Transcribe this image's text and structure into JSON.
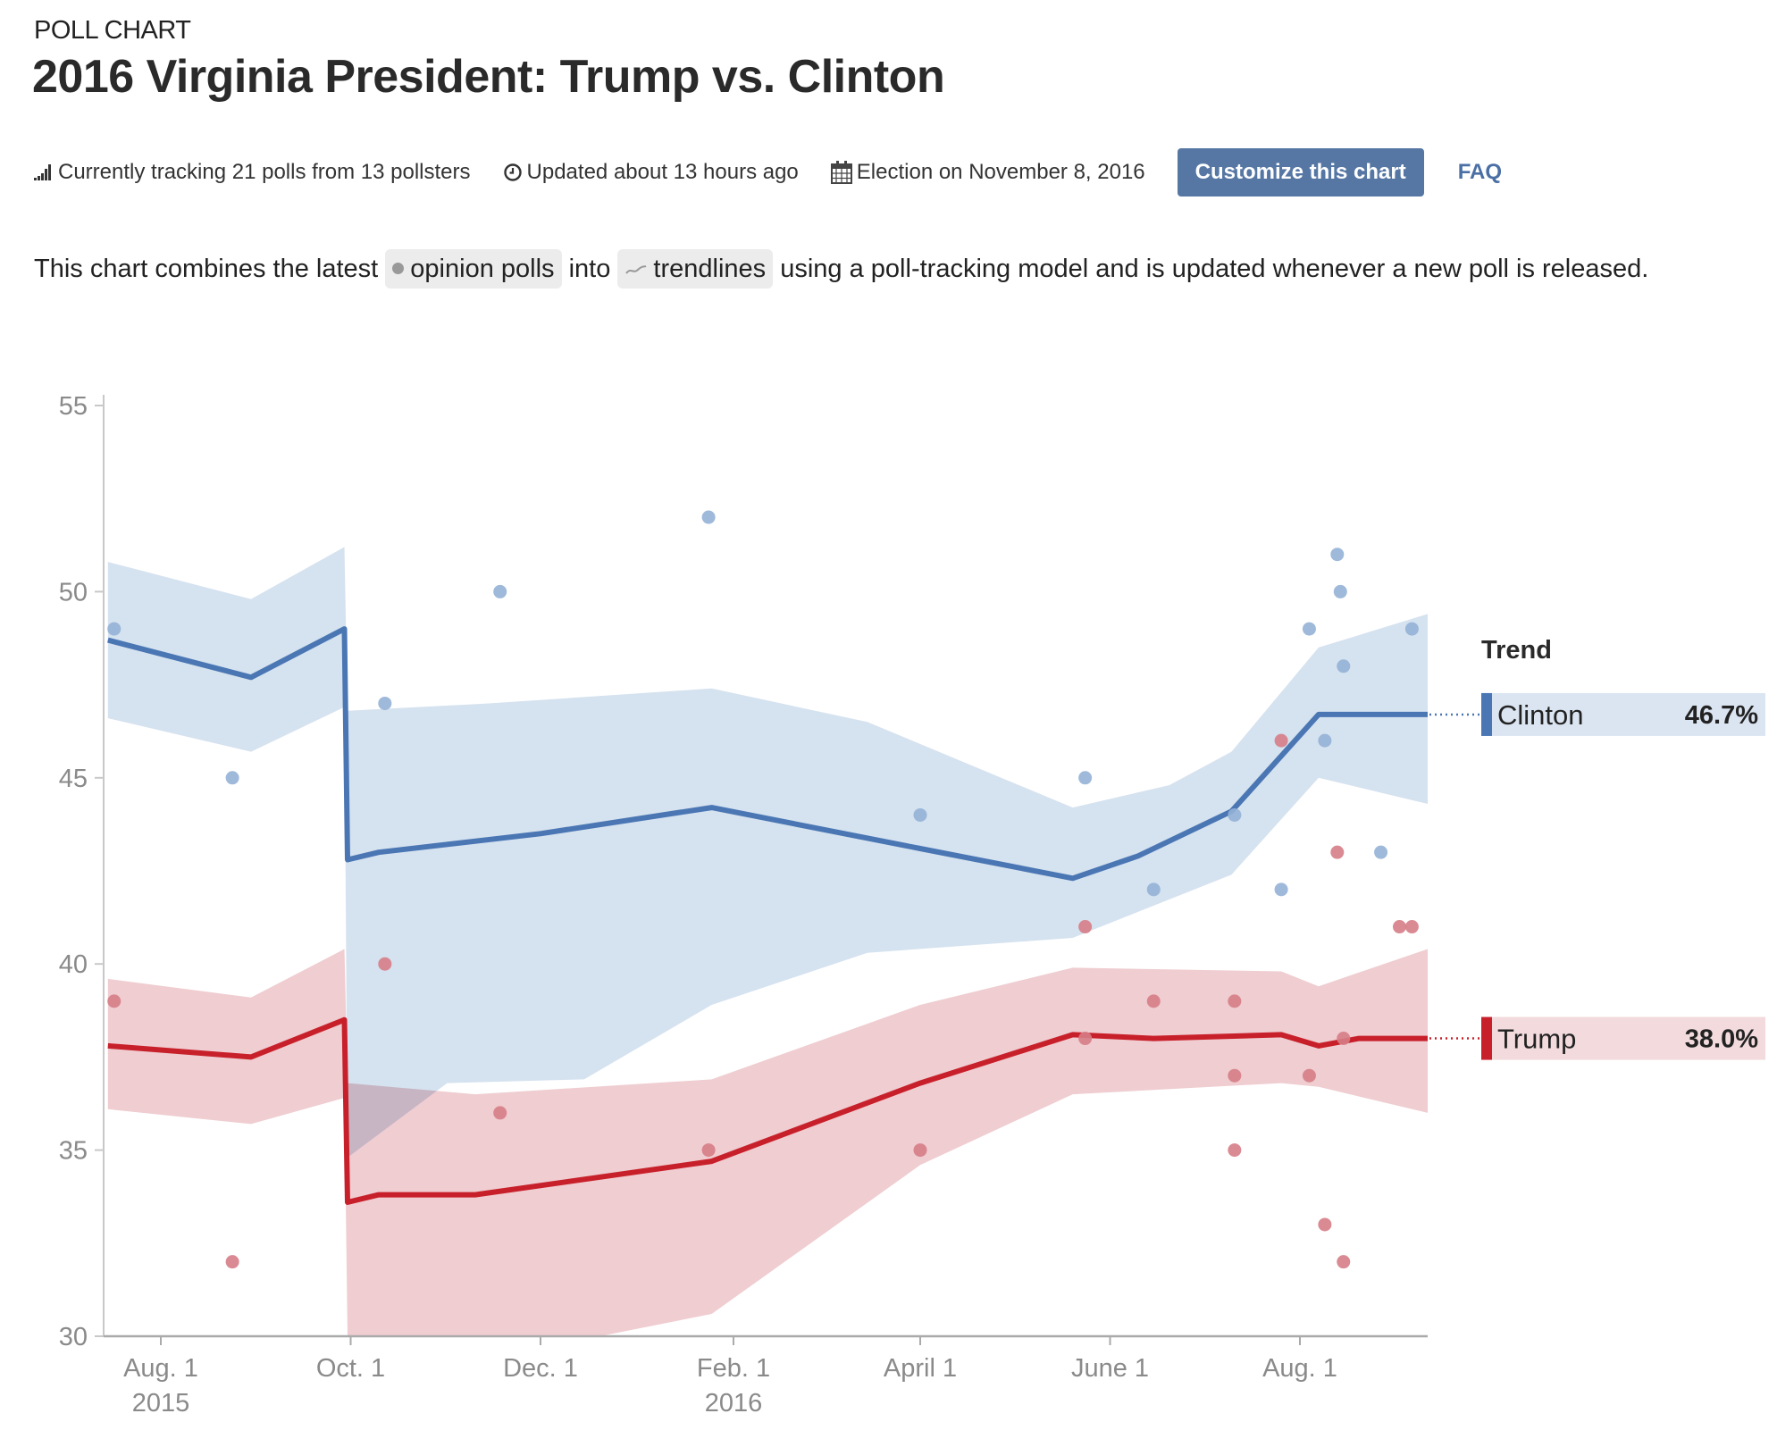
{
  "header": {
    "eyebrow": "POLL CHART",
    "title": "2016 Virginia President: Trump vs. Clinton"
  },
  "meta": {
    "tracking": {
      "icon": "signal-bars-icon",
      "text": "Currently tracking 21 polls from 13 pollsters"
    },
    "updated": {
      "icon": "clock-icon",
      "text": "Updated about 13 hours ago"
    },
    "election": {
      "icon": "calendar-icon",
      "text": "Election on November 8, 2016"
    },
    "customize_label": "Customize this chart",
    "faq_label": "FAQ"
  },
  "description": {
    "before": "This chart combines the latest",
    "pill_polls": "opinion polls",
    "middle": "into",
    "pill_trend": "trendlines",
    "after": "using a poll-tracking model and is updated whenever a new poll is released."
  },
  "colors": {
    "clinton_line": "#4a76b4",
    "clinton_band": "#d3e0ee",
    "clinton_dot": "#93b1d6",
    "trump_line": "#c8202a",
    "trump_band": "#efcdd1",
    "trump_dot": "#d67d86",
    "button": "#5677a4",
    "faq": "#4a6fa5"
  },
  "chart_data": {
    "type": "line",
    "title": "2016 Virginia President: Trump vs. Clinton",
    "xlabel": "",
    "ylabel": "",
    "ylim": [
      30,
      55
    ],
    "yticks": [
      "55",
      "50",
      "45",
      "40",
      "35",
      "30"
    ],
    "xlim": [
      "2015-07-15",
      "2016-09-20"
    ],
    "xticks": [
      {
        "date": "2015-08-01",
        "label": "Aug. 1",
        "sub": "2015"
      },
      {
        "date": "2015-10-01",
        "label": "Oct. 1",
        "sub": ""
      },
      {
        "date": "2015-12-01",
        "label": "Dec. 1",
        "sub": ""
      },
      {
        "date": "2016-02-01",
        "label": "Feb. 1",
        "sub": "2016"
      },
      {
        "date": "2016-04-01",
        "label": "April 1",
        "sub": ""
      },
      {
        "date": "2016-06-01",
        "label": "June 1",
        "sub": ""
      },
      {
        "date": "2016-08-01",
        "label": "Aug. 1",
        "sub": ""
      }
    ],
    "grid": false,
    "legend": {
      "title": "Trend",
      "placement": "right"
    },
    "series": [
      {
        "name": "Clinton",
        "latest": "46.7%",
        "trend": [
          [
            "2015-07-15",
            48.7
          ],
          [
            "2015-08-30",
            47.7
          ],
          [
            "2015-09-29",
            49.0
          ],
          [
            "2015-09-30",
            42.8
          ],
          [
            "2015-10-10",
            43.0
          ],
          [
            "2015-12-01",
            43.5
          ],
          [
            "2016-01-25",
            44.2
          ],
          [
            "2016-04-01",
            43.1
          ],
          [
            "2016-05-20",
            42.3
          ],
          [
            "2016-06-10",
            42.9
          ],
          [
            "2016-07-10",
            44.1
          ],
          [
            "2016-08-07",
            46.7
          ],
          [
            "2016-09-20",
            46.7
          ]
        ],
        "band_upper": [
          [
            "2015-07-15",
            50.8
          ],
          [
            "2015-08-30",
            49.8
          ],
          [
            "2015-09-29",
            51.2
          ],
          [
            "2015-09-30",
            46.8
          ],
          [
            "2015-11-15",
            47.0
          ],
          [
            "2016-01-25",
            47.4
          ],
          [
            "2016-03-15",
            46.5
          ],
          [
            "2016-05-20",
            44.2
          ],
          [
            "2016-06-20",
            44.8
          ],
          [
            "2016-07-10",
            45.7
          ],
          [
            "2016-08-07",
            48.5
          ],
          [
            "2016-09-20",
            49.4
          ]
        ],
        "band_lower": [
          [
            "2015-07-15",
            46.6
          ],
          [
            "2015-08-30",
            45.7
          ],
          [
            "2015-09-29",
            46.9
          ],
          [
            "2015-09-30",
            34.8
          ],
          [
            "2015-11-01",
            36.8
          ],
          [
            "2015-12-15",
            36.9
          ],
          [
            "2016-01-25",
            38.9
          ],
          [
            "2016-03-15",
            40.3
          ],
          [
            "2016-05-20",
            40.7
          ],
          [
            "2016-07-10",
            42.4
          ],
          [
            "2016-08-07",
            45.0
          ],
          [
            "2016-09-20",
            44.3
          ]
        ],
        "polls": [
          [
            "2015-07-17",
            49
          ],
          [
            "2015-08-24",
            45
          ],
          [
            "2015-10-12",
            47
          ],
          [
            "2015-11-18",
            50
          ],
          [
            "2016-01-24",
            52
          ],
          [
            "2016-04-01",
            44
          ],
          [
            "2016-05-24",
            45
          ],
          [
            "2016-06-15",
            42
          ],
          [
            "2016-07-11",
            44
          ],
          [
            "2016-07-26",
            42
          ],
          [
            "2016-08-04",
            49
          ],
          [
            "2016-08-09",
            46
          ],
          [
            "2016-08-13",
            51
          ],
          [
            "2016-08-14",
            50
          ],
          [
            "2016-08-15",
            48
          ],
          [
            "2016-08-27",
            43
          ],
          [
            "2016-09-06",
            49
          ]
        ]
      },
      {
        "name": "Trump",
        "latest": "38.0%",
        "trend": [
          [
            "2015-07-15",
            37.8
          ],
          [
            "2015-08-30",
            37.5
          ],
          [
            "2015-09-29",
            38.5
          ],
          [
            "2015-09-30",
            33.6
          ],
          [
            "2015-10-10",
            33.8
          ],
          [
            "2015-11-10",
            33.8
          ],
          [
            "2016-01-25",
            34.7
          ],
          [
            "2016-04-01",
            36.8
          ],
          [
            "2016-05-20",
            38.1
          ],
          [
            "2016-06-15",
            38.0
          ],
          [
            "2016-07-26",
            38.1
          ],
          [
            "2016-08-07",
            37.8
          ],
          [
            "2016-08-20",
            38.0
          ],
          [
            "2016-09-20",
            38.0
          ]
        ],
        "band_upper": [
          [
            "2015-07-15",
            39.6
          ],
          [
            "2015-08-30",
            39.1
          ],
          [
            "2015-09-29",
            40.4
          ],
          [
            "2015-09-30",
            36.8
          ],
          [
            "2015-11-10",
            36.5
          ],
          [
            "2016-01-25",
            36.9
          ],
          [
            "2016-04-01",
            38.9
          ],
          [
            "2016-05-20",
            39.9
          ],
          [
            "2016-07-26",
            39.8
          ],
          [
            "2016-08-07",
            39.4
          ],
          [
            "2016-09-20",
            40.4
          ]
        ],
        "band_lower": [
          [
            "2015-07-15",
            36.1
          ],
          [
            "2015-08-30",
            35.7
          ],
          [
            "2015-09-29",
            36.4
          ],
          [
            "2015-09-30",
            30.0
          ],
          [
            "2015-12-20",
            29.5
          ],
          [
            "2016-01-25",
            30.6
          ],
          [
            "2016-04-01",
            34.6
          ],
          [
            "2016-05-20",
            36.5
          ],
          [
            "2016-07-26",
            36.8
          ],
          [
            "2016-08-07",
            36.7
          ],
          [
            "2016-09-20",
            36.0
          ]
        ],
        "polls": [
          [
            "2015-07-17",
            39
          ],
          [
            "2015-08-24",
            32
          ],
          [
            "2015-10-12",
            40
          ],
          [
            "2015-11-18",
            36
          ],
          [
            "2016-01-24",
            35
          ],
          [
            "2016-04-01",
            35
          ],
          [
            "2016-05-24",
            41
          ],
          [
            "2016-05-24",
            38
          ],
          [
            "2016-06-15",
            39
          ],
          [
            "2016-07-11",
            39
          ],
          [
            "2016-07-11",
            37
          ],
          [
            "2016-07-11",
            35
          ],
          [
            "2016-07-26",
            46
          ],
          [
            "2016-08-04",
            37
          ],
          [
            "2016-08-09",
            33
          ],
          [
            "2016-08-13",
            43
          ],
          [
            "2016-08-15",
            38
          ],
          [
            "2016-08-15",
            32
          ],
          [
            "2016-09-02",
            41
          ],
          [
            "2016-09-06",
            41
          ]
        ]
      }
    ]
  }
}
